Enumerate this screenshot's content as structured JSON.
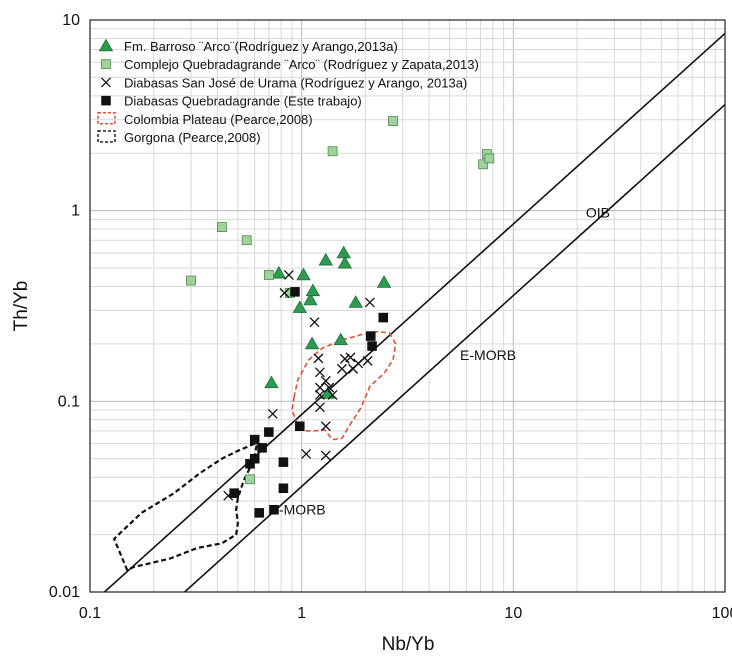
{
  "chart_data": {
    "type": "scatter",
    "title": "",
    "xlabel": "Nb/Yb",
    "ylabel": "Th/Yb",
    "xscale": "log",
    "yscale": "log",
    "xlim": [
      0.1,
      100
    ],
    "ylim": [
      0.01,
      10
    ],
    "grid": true,
    "legend_position": "top-left",
    "x_tick_labels": [
      "0.1",
      "1",
      "10",
      "100"
    ],
    "y_tick_labels": [
      "0.01",
      "0.1",
      "1",
      "10"
    ],
    "colors": {
      "triangle": "#2e9a52",
      "light_square": "#9fd39b",
      "dark_square": "#111111",
      "plateau": "#e0513c",
      "gorgona": "#333333"
    },
    "series": [
      {
        "name": "Fm. Barroso ¨Arco¨(Rodríguez  y Arango,2013a)",
        "marker": "triangle",
        "points": [
          [
            0.72,
            0.125
          ],
          [
            0.78,
            0.47
          ],
          [
            0.98,
            0.31
          ],
          [
            1.02,
            0.46
          ],
          [
            1.1,
            0.34
          ],
          [
            1.13,
            0.38
          ],
          [
            1.12,
            0.2
          ],
          [
            1.3,
            0.55
          ],
          [
            1.33,
            0.11
          ],
          [
            1.58,
            0.6
          ],
          [
            1.6,
            0.53
          ],
          [
            1.53,
            0.21
          ],
          [
            1.8,
            0.33
          ],
          [
            2.45,
            0.42
          ]
        ]
      },
      {
        "name": "Complejo Quebradagrande  ¨Arco¨ (Rodríguez y Zapata,2013)",
        "marker": "light-square",
        "points": [
          [
            0.3,
            0.43
          ],
          [
            0.42,
            0.82
          ],
          [
            0.55,
            0.7
          ],
          [
            0.7,
            0.46
          ],
          [
            0.88,
            0.37
          ],
          [
            0.57,
            0.039
          ],
          [
            1.4,
            2.05
          ],
          [
            2.7,
            2.95
          ],
          [
            7.2,
            1.75
          ],
          [
            7.5,
            1.98
          ],
          [
            7.7,
            1.88
          ]
        ]
      },
      {
        "name": "Diabasas San José de Urama (Rodríguez y  Arango, 2013a)",
        "marker": "x",
        "points": [
          [
            0.45,
            0.032
          ],
          [
            0.73,
            0.086
          ],
          [
            0.83,
            0.37
          ],
          [
            0.87,
            0.46
          ],
          [
            1.05,
            0.053
          ],
          [
            1.15,
            0.26
          ],
          [
            1.2,
            0.168
          ],
          [
            1.22,
            0.142
          ],
          [
            1.22,
            0.118
          ],
          [
            1.22,
            0.108
          ],
          [
            1.22,
            0.093
          ],
          [
            1.3,
            0.128
          ],
          [
            1.3,
            0.074
          ],
          [
            1.3,
            0.052
          ],
          [
            1.35,
            0.118
          ],
          [
            1.4,
            0.108
          ],
          [
            1.55,
            0.148
          ],
          [
            1.6,
            0.167
          ],
          [
            1.7,
            0.17
          ],
          [
            1.75,
            0.148
          ],
          [
            1.85,
            0.158
          ],
          [
            2.05,
            0.163
          ],
          [
            2.1,
            0.33
          ]
        ]
      },
      {
        "name": "Diabasas Quebradagrande (Este trabajo)",
        "marker": "dark-square",
        "points": [
          [
            0.48,
            0.033
          ],
          [
            0.57,
            0.047
          ],
          [
            0.6,
            0.05
          ],
          [
            0.6,
            0.063
          ],
          [
            0.65,
            0.057
          ],
          [
            0.63,
            0.026
          ],
          [
            0.7,
            0.069
          ],
          [
            0.74,
            0.027
          ],
          [
            0.82,
            0.048
          ],
          [
            0.82,
            0.035
          ],
          [
            0.93,
            0.375
          ],
          [
            0.98,
            0.074
          ],
          [
            2.12,
            0.22
          ],
          [
            2.15,
            0.195
          ],
          [
            2.43,
            0.275
          ]
        ]
      }
    ],
    "regions": [
      {
        "name": "Colombia Plateau (Pearce,2008)",
        "style": "red-dashed",
        "points": [
          [
            0.92,
            0.105
          ],
          [
            0.96,
            0.13
          ],
          [
            1.08,
            0.165
          ],
          [
            1.25,
            0.19
          ],
          [
            1.55,
            0.21
          ],
          [
            1.95,
            0.225
          ],
          [
            2.3,
            0.232
          ],
          [
            2.6,
            0.228
          ],
          [
            2.78,
            0.2
          ],
          [
            2.7,
            0.165
          ],
          [
            2.45,
            0.14
          ],
          [
            2.1,
            0.12
          ],
          [
            1.9,
            0.092
          ],
          [
            1.7,
            0.076
          ],
          [
            1.55,
            0.064
          ],
          [
            1.4,
            0.063
          ],
          [
            1.28,
            0.071
          ],
          [
            1.15,
            0.07
          ],
          [
            1.02,
            0.07
          ],
          [
            0.95,
            0.077
          ],
          [
            0.9,
            0.09
          ]
        ]
      },
      {
        "name": "Gorgona (Pearce,2008)",
        "style": "black-dashed",
        "points": [
          [
            0.15,
            0.013
          ],
          [
            0.13,
            0.019
          ],
          [
            0.175,
            0.026
          ],
          [
            0.25,
            0.033
          ],
          [
            0.33,
            0.042
          ],
          [
            0.42,
            0.05
          ],
          [
            0.5,
            0.055
          ],
          [
            0.56,
            0.058
          ],
          [
            0.6,
            0.06
          ],
          [
            0.62,
            0.063
          ],
          [
            0.615,
            0.06
          ],
          [
            0.6,
            0.052
          ],
          [
            0.57,
            0.045
          ],
          [
            0.53,
            0.038
          ],
          [
            0.5,
            0.031
          ],
          [
            0.49,
            0.027
          ],
          [
            0.5,
            0.023
          ],
          [
            0.49,
            0.02
          ],
          [
            0.42,
            0.018
          ],
          [
            0.32,
            0.017
          ],
          [
            0.24,
            0.015
          ],
          [
            0.185,
            0.014
          ],
          [
            0.16,
            0.0135
          ],
          [
            0.15,
            0.013
          ]
        ]
      }
    ],
    "reference_lines": [
      {
        "name": "upper",
        "points": [
          [
            0.117,
            0.01
          ],
          [
            100,
            8.5
          ]
        ]
      },
      {
        "name": "lower",
        "points": [
          [
            0.28,
            0.01
          ],
          [
            100,
            3.6
          ]
        ]
      }
    ],
    "annotations": [
      {
        "text": "OIB",
        "x": 22,
        "y": 0.92
      },
      {
        "text": "E-MORB",
        "x": 5.6,
        "y": 0.165
      },
      {
        "text": "N-MORB",
        "x": 0.7,
        "y": 0.0255
      }
    ]
  }
}
